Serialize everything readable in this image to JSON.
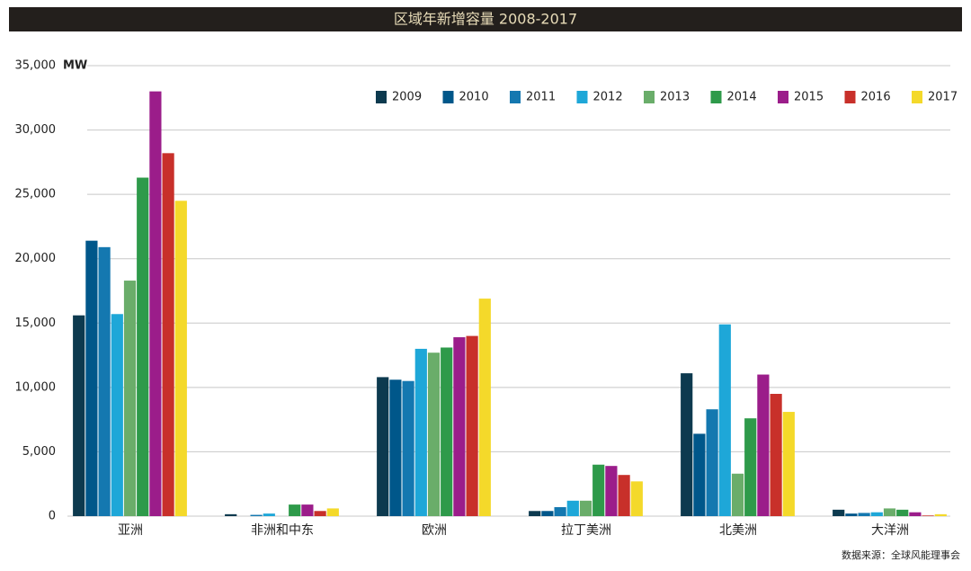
{
  "chart_data": {
    "type": "bar",
    "title": "区域年新增容量 2008-2017",
    "y_label": "MW",
    "source": "数据来源：全球风能理事会",
    "categories": [
      "亚洲",
      "非洲和中东",
      "欧洲",
      "拉丁美洲",
      "北美洲",
      "大洋洲"
    ],
    "series": [
      {
        "name": "2009",
        "color": "#0d3a4f",
        "values": [
          15600,
          150,
          10800,
          400,
          11100,
          500
        ]
      },
      {
        "name": "2010",
        "color": "#00578a",
        "values": [
          21400,
          0,
          10600,
          400,
          6400,
          200
        ]
      },
      {
        "name": "2011",
        "color": "#1478b0",
        "values": [
          20900,
          100,
          10500,
          700,
          8300,
          250
        ]
      },
      {
        "name": "2012",
        "color": "#1ea7d8",
        "values": [
          15700,
          200,
          13000,
          1200,
          14900,
          300
        ]
      },
      {
        "name": "2013",
        "color": "#6aad6a",
        "values": [
          18300,
          0,
          12700,
          1200,
          3300,
          600
        ]
      },
      {
        "name": "2014",
        "color": "#2e9a4a",
        "values": [
          26300,
          900,
          13100,
          4000,
          7600,
          500
        ]
      },
      {
        "name": "2015",
        "color": "#9b1d8a",
        "values": [
          33000,
          900,
          13900,
          3900,
          11000,
          300
        ]
      },
      {
        "name": "2016",
        "color": "#c8302a",
        "values": [
          28200,
          400,
          14000,
          3200,
          9500,
          50
        ]
      },
      {
        "name": "2017",
        "color": "#f4d92a",
        "values": [
          24500,
          600,
          16900,
          2700,
          8100,
          150
        ]
      }
    ],
    "ylim": [
      0,
      35000
    ],
    "yticks": [
      0,
      {
        "value": 5000,
        "label": "5,000"
      },
      {
        "value": 10000,
        "label": "10,000"
      },
      {
        "value": 15000,
        "label": "15,000"
      },
      {
        "value": 20000,
        "label": "20,000"
      },
      {
        "value": 25000,
        "label": "25,000"
      },
      {
        "value": 30000,
        "label": "30,000"
      },
      {
        "value": 35000,
        "label": "35,000"
      }
    ],
    "grid": true,
    "legend": "top-right"
  }
}
